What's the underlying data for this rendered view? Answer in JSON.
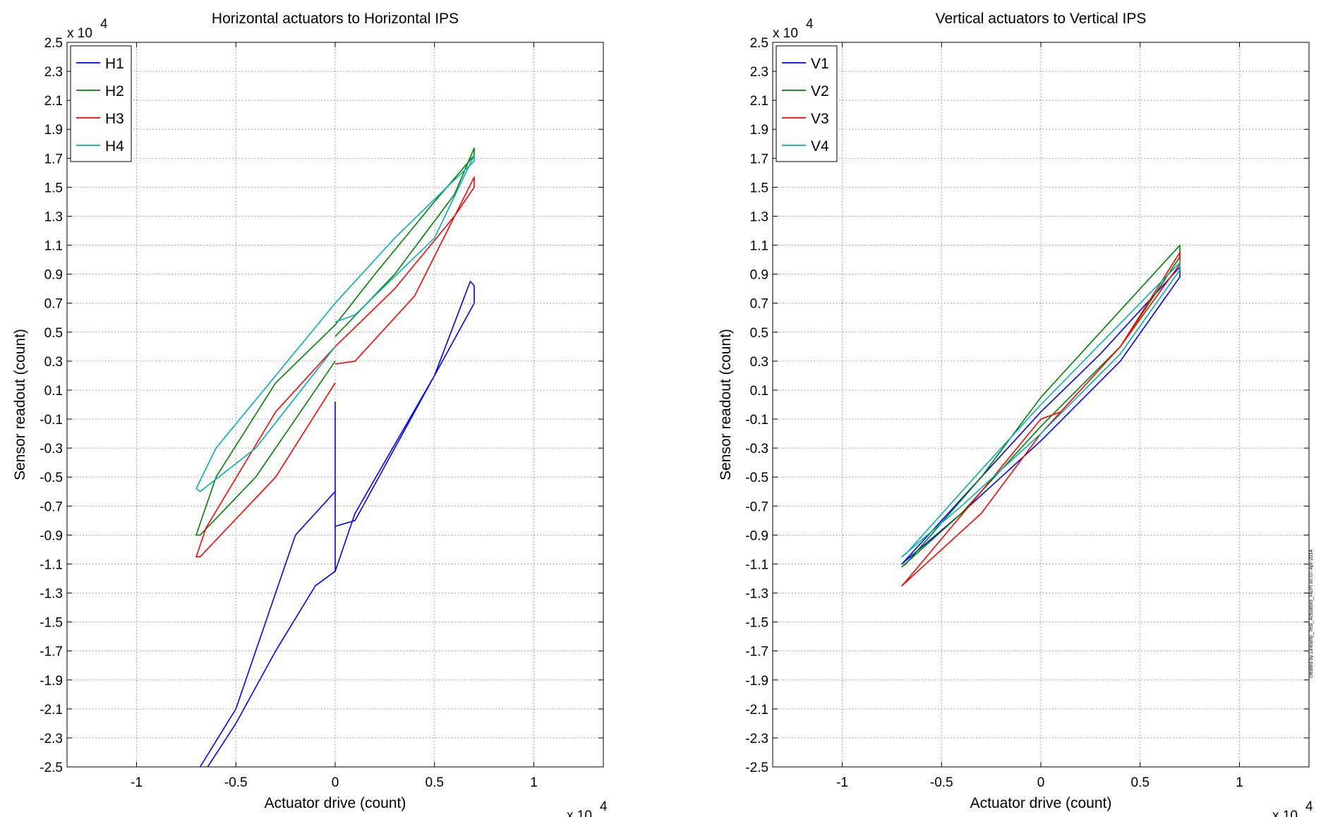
{
  "footer_note": "created by Linearity_Test_Actuators_HEPI on 07-Apr-2014",
  "chart_data": [
    {
      "type": "line",
      "title": "Horizontal actuators to Horizontal IPS",
      "xlabel": "Actuator drive (count)",
      "ylabel": "Sensor readout (count)",
      "x_multiplier": "x 10",
      "y_multiplier": "x 10",
      "multiplier_exponent": "4",
      "xlim": [
        -1.35,
        1.35
      ],
      "ylim": [
        -2.5,
        2.5
      ],
      "xticks": [
        -1,
        -0.5,
        0,
        0.5,
        1
      ],
      "xtick_labels": [
        "-1",
        "-0.5",
        "0",
        "0.5",
        "1"
      ],
      "yticks": [
        -2.5,
        -2.3,
        -2.1,
        -1.9,
        -1.7,
        -1.5,
        -1.3,
        -1.1,
        -0.9,
        -0.7,
        -0.5,
        -0.3,
        -0.1,
        0.1,
        0.3,
        0.5,
        0.7,
        0.9,
        1.1,
        1.3,
        1.5,
        1.7,
        1.9,
        2.1,
        2.3,
        2.5
      ],
      "ytick_labels": [
        "-2.5",
        "-2.3",
        "-2.1",
        "-1.9",
        "-1.7",
        "-1.5",
        "-1.3",
        "-1.1",
        "-0.9",
        "-0.7",
        "-0.5",
        "-0.3",
        "-0.1",
        "0.1",
        "0.3",
        "0.5",
        "0.7",
        "0.9",
        "1.1",
        "1.3",
        "1.5",
        "1.7",
        "1.9",
        "2.1",
        "2.3",
        "2.5"
      ],
      "grid": true,
      "legend_position": "top-left",
      "series": [
        {
          "name": "H1",
          "color": "#0000ff",
          "x": [
            0,
            0,
            0.1,
            0.5,
            0.68,
            0.7,
            0.7,
            0.5,
            0.1,
            0,
            0,
            0,
            -0.2,
            -0.5,
            -0.68
          ],
          "y": [
            0.02,
            -0.84,
            -0.8,
            0.2,
            0.85,
            0.82,
            0.7,
            0.2,
            -0.75,
            -1.15,
            -0.84,
            -0.6,
            -0.9,
            -2.1,
            -2.5
          ]
        },
        {
          "name": "",
          "color": "#0000ff",
          "x": [
            0,
            -0.1,
            -0.3,
            -0.5,
            -0.68
          ],
          "y": [
            -1.15,
            -1.25,
            -1.7,
            -2.2,
            -2.58
          ]
        },
        {
          "name": "H2",
          "color": "#008000",
          "x": [
            0,
            0.3,
            0.6,
            0.7,
            0.7,
            0.5,
            0.2,
            0,
            -0.3,
            -0.6,
            -0.7,
            -0.68,
            -0.4,
            0
          ],
          "y": [
            0.47,
            0.9,
            1.45,
            1.77,
            1.72,
            1.4,
            0.9,
            0.55,
            0.15,
            -0.5,
            -0.9,
            -0.9,
            -0.5,
            0.3
          ]
        },
        {
          "name": "H3",
          "color": "#ff0000",
          "x": [
            0,
            0.1,
            0.4,
            0.7,
            0.7,
            0.6,
            0.3,
            0,
            -0.3,
            -0.65,
            -0.7,
            -0.68,
            -0.3,
            0
          ],
          "y": [
            0.28,
            0.3,
            0.75,
            1.57,
            1.5,
            1.3,
            0.8,
            0.4,
            -0.05,
            -0.85,
            -1.05,
            -1.05,
            -0.5,
            0.15
          ]
        },
        {
          "name": "H4",
          "color": "#00b0b0",
          "x": [
            0,
            0.1,
            0.5,
            0.7,
            0.7,
            0.6,
            0.3,
            0,
            -0.3,
            -0.6,
            -0.7,
            -0.68,
            -0.4,
            0
          ],
          "y": [
            0.57,
            0.62,
            1.15,
            1.72,
            1.68,
            1.55,
            1.15,
            0.7,
            0.2,
            -0.3,
            -0.58,
            -0.6,
            -0.3,
            0.4
          ]
        }
      ]
    },
    {
      "type": "line",
      "title": "Vertical actuators to Vertical IPS",
      "xlabel": "Actuator drive (count)",
      "ylabel": "Sensor readout (count)",
      "x_multiplier": "x 10",
      "y_multiplier": "x 10",
      "multiplier_exponent": "4",
      "xlim": [
        -1.35,
        1.35
      ],
      "ylim": [
        -2.5,
        2.5
      ],
      "xticks": [
        -1,
        -0.5,
        0,
        0.5,
        1
      ],
      "xtick_labels": [
        "-1",
        "-0.5",
        "0",
        "0.5",
        "1"
      ],
      "yticks": [
        -2.5,
        -2.3,
        -2.1,
        -1.9,
        -1.7,
        -1.5,
        -1.3,
        -1.1,
        -0.9,
        -0.7,
        -0.5,
        -0.3,
        -0.1,
        0.1,
        0.3,
        0.5,
        0.7,
        0.9,
        1.1,
        1.3,
        1.5,
        1.7,
        1.9,
        2.1,
        2.3,
        2.5
      ],
      "ytick_labels": [
        "-2.5",
        "-2.3",
        "-2.1",
        "-1.9",
        "-1.7",
        "-1.5",
        "-1.3",
        "-1.1",
        "-0.9",
        "-0.7",
        "-0.5",
        "-0.3",
        "-0.1",
        "0.1",
        "0.3",
        "0.5",
        "0.7",
        "0.9",
        "1.1",
        "1.3",
        "1.5",
        "1.7",
        "1.9",
        "2.1",
        "2.3",
        "2.5"
      ],
      "grid": true,
      "legend_position": "top-left",
      "series": [
        {
          "name": "V1",
          "color": "#0000ff",
          "x": [
            0,
            0.3,
            0.7,
            0.7,
            0.4,
            0,
            -0.4,
            -0.7,
            -0.68,
            -0.3,
            0
          ],
          "y": [
            -0.05,
            0.35,
            0.95,
            0.88,
            0.3,
            -0.25,
            -0.75,
            -1.1,
            -1.07,
            -0.5,
            -0.05
          ]
        },
        {
          "name": "V2",
          "color": "#008000",
          "x": [
            0,
            0.3,
            0.7,
            0.7,
            0.4,
            0,
            -0.4,
            -0.7,
            -0.68,
            -0.3,
            0
          ],
          "y": [
            0.05,
            0.5,
            1.1,
            1.02,
            0.4,
            -0.15,
            -0.75,
            -1.12,
            -1.1,
            -0.5,
            0.05
          ]
        },
        {
          "name": "V3",
          "color": "#ff0000",
          "x": [
            0,
            0.1,
            0.4,
            0.7,
            0.7,
            0.4,
            0,
            -0.3,
            -0.7,
            -0.68,
            -0.3,
            0
          ],
          "y": [
            -0.1,
            -0.05,
            0.4,
            1.05,
            0.97,
            0.4,
            -0.2,
            -0.75,
            -1.25,
            -1.22,
            -0.6,
            -0.1
          ]
        },
        {
          "name": "V4",
          "color": "#00b0b0",
          "x": [
            0,
            0.3,
            0.7,
            0.7,
            0.4,
            0,
            -0.4,
            -0.7,
            -0.68,
            -0.3,
            0
          ],
          "y": [
            0,
            0.42,
            0.98,
            0.93,
            0.35,
            -0.2,
            -0.7,
            -1.05,
            -1.03,
            -0.45,
            0
          ]
        }
      ]
    }
  ]
}
